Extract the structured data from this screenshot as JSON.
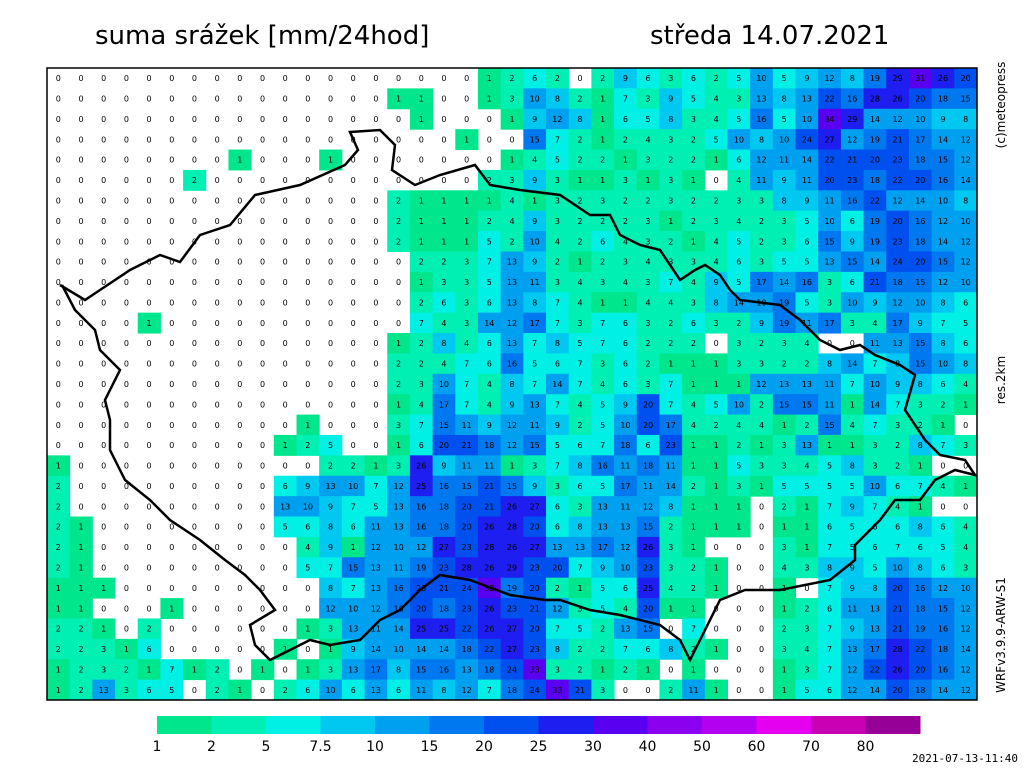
{
  "header": {
    "title": "suma srážek [mm/24hod]",
    "date": "středa 14.07.2021"
  },
  "side_labels": [
    "(c)meteopress",
    "res.2km",
    "WRFv3.9.9-ARW-S1"
  ],
  "timestamp": "2021-07-13-11:40",
  "legend": {
    "levels": [
      1,
      2,
      5,
      7.5,
      10,
      15,
      20,
      25,
      30,
      40,
      50,
      60,
      70,
      80
    ],
    "colors": [
      "#00e68c",
      "#00f0b4",
      "#00f0e6",
      "#00c8f0",
      "#00a0f0",
      "#0078f0",
      "#0050f0",
      "#1e1ef0",
      "#5a00f0",
      "#8c00f0",
      "#b400f0",
      "#e600f0",
      "#c800b4",
      "#960096"
    ]
  },
  "grid": {
    "rows": [
      [
        0,
        0,
        0,
        0,
        0,
        0,
        0,
        0,
        0,
        0,
        0,
        0,
        0,
        0,
        0,
        0,
        0,
        0,
        0,
        1,
        2,
        6,
        2,
        0,
        2,
        9,
        6,
        3,
        6,
        2,
        5,
        10,
        5,
        9,
        12,
        8,
        19,
        29,
        31,
        26,
        20
      ],
      [
        0,
        0,
        0,
        0,
        0,
        0,
        0,
        0,
        0,
        0,
        0,
        0,
        0,
        0,
        0,
        1,
        1,
        0,
        0,
        1,
        3,
        10,
        8,
        2,
        1,
        7,
        3,
        9,
        5,
        4,
        3,
        13,
        8,
        13,
        22,
        16,
        28,
        26,
        20,
        18,
        15
      ],
      [
        0,
        0,
        0,
        0,
        0,
        0,
        0,
        0,
        0,
        0,
        0,
        0,
        0,
        0,
        0,
        0,
        1,
        0,
        0,
        0,
        1,
        9,
        12,
        8,
        1,
        6,
        5,
        8,
        3,
        4,
        5,
        16,
        5,
        10,
        34,
        29,
        14,
        12,
        10,
        9,
        8
      ],
      [
        0,
        0,
        0,
        0,
        0,
        0,
        0,
        0,
        0,
        0,
        0,
        0,
        0,
        0,
        0,
        0,
        0,
        0,
        1,
        0,
        0,
        15,
        7,
        2,
        1,
        2,
        4,
        3,
        2,
        5,
        10,
        8,
        10,
        24,
        27,
        12,
        19,
        21,
        17,
        14,
        12
      ],
      [
        0,
        0,
        0,
        0,
        0,
        0,
        0,
        0,
        1,
        0,
        0,
        0,
        1,
        0,
        0,
        0,
        0,
        0,
        0,
        0,
        1,
        4,
        5,
        2,
        2,
        1,
        3,
        2,
        2,
        1,
        6,
        12,
        11,
        14,
        22,
        21,
        20,
        23,
        18,
        15,
        12
      ],
      [
        0,
        0,
        0,
        0,
        0,
        0,
        2,
        0,
        0,
        0,
        0,
        0,
        0,
        0,
        0,
        0,
        0,
        0,
        0,
        2,
        3,
        9,
        3,
        1,
        1,
        3,
        1,
        3,
        1,
        0,
        4,
        11,
        9,
        11,
        20,
        23,
        18,
        22,
        20,
        16,
        14
      ],
      [
        0,
        0,
        0,
        0,
        0,
        0,
        0,
        0,
        0,
        0,
        0,
        0,
        0,
        0,
        0,
        2,
        1,
        1,
        1,
        1,
        4,
        1,
        3,
        2,
        3,
        2,
        2,
        3,
        2,
        2,
        3,
        3,
        8,
        9,
        11,
        16,
        22,
        12,
        14,
        10,
        8
      ],
      [
        0,
        0,
        0,
        0,
        0,
        0,
        0,
        0,
        0,
        0,
        0,
        0,
        0,
        0,
        0,
        2,
        1,
        1,
        1,
        2,
        4,
        9,
        3,
        2,
        2,
        2,
        3,
        1,
        2,
        3,
        4,
        2,
        3,
        5,
        10,
        6,
        19,
        20,
        16,
        12,
        10
      ],
      [
        0,
        0,
        0,
        0,
        0,
        0,
        0,
        0,
        0,
        0,
        0,
        0,
        0,
        0,
        0,
        2,
        1,
        1,
        1,
        5,
        2,
        10,
        4,
        2,
        6,
        4,
        3,
        2,
        1,
        4,
        5,
        2,
        3,
        6,
        15,
        9,
        19,
        23,
        18,
        14,
        12
      ],
      [
        0,
        0,
        0,
        0,
        0,
        0,
        0,
        0,
        0,
        0,
        0,
        0,
        0,
        0,
        0,
        0,
        2,
        2,
        3,
        7,
        13,
        9,
        2,
        1,
        2,
        3,
        4,
        3,
        3,
        4,
        6,
        3,
        5,
        5,
        13,
        15,
        14,
        24,
        20,
        15,
        12
      ],
      [
        0,
        0,
        0,
        0,
        0,
        0,
        0,
        0,
        0,
        0,
        0,
        0,
        0,
        0,
        0,
        0,
        1,
        3,
        3,
        5,
        13,
        11,
        3,
        4,
        3,
        4,
        3,
        7,
        4,
        9,
        5,
        17,
        14,
        16,
        3,
        6,
        21,
        18,
        15,
        12,
        10
      ],
      [
        0,
        0,
        0,
        0,
        0,
        0,
        0,
        0,
        0,
        0,
        0,
        0,
        0,
        0,
        0,
        0,
        2,
        6,
        3,
        6,
        13,
        8,
        7,
        4,
        1,
        1,
        4,
        4,
        3,
        8,
        14,
        10,
        19,
        5,
        3,
        10,
        9,
        12,
        10,
        8,
        6
      ],
      [
        0,
        0,
        0,
        0,
        1,
        0,
        0,
        0,
        0,
        0,
        0,
        0,
        0,
        0,
        0,
        0,
        7,
        4,
        3,
        14,
        12,
        17,
        7,
        3,
        7,
        6,
        3,
        2,
        6,
        3,
        2,
        9,
        19,
        11,
        17,
        3,
        4,
        17,
        9,
        7,
        5
      ],
      [
        0,
        0,
        0,
        0,
        0,
        0,
        0,
        0,
        0,
        0,
        0,
        0,
        0,
        0,
        0,
        1,
        2,
        8,
        4,
        6,
        13,
        7,
        8,
        5,
        7,
        6,
        2,
        2,
        2,
        0,
        3,
        2,
        3,
        4,
        0,
        0,
        11,
        13,
        15,
        8,
        6
      ],
      [
        0,
        0,
        0,
        0,
        0,
        0,
        0,
        0,
        0,
        0,
        0,
        0,
        0,
        0,
        0,
        2,
        2,
        4,
        7,
        6,
        16,
        5,
        6,
        7,
        3,
        6,
        2,
        1,
        1,
        1,
        3,
        3,
        2,
        2,
        8,
        14,
        7,
        8,
        15,
        10,
        8
      ],
      [
        0,
        0,
        0,
        0,
        0,
        0,
        0,
        0,
        0,
        0,
        0,
        0,
        0,
        0,
        0,
        2,
        3,
        10,
        7,
        4,
        8,
        7,
        14,
        7,
        4,
        6,
        3,
        7,
        1,
        1,
        1,
        12,
        13,
        13,
        11,
        7,
        10,
        9,
        8,
        6,
        4
      ],
      [
        0,
        0,
        0,
        0,
        0,
        0,
        0,
        0,
        0,
        0,
        0,
        0,
        0,
        0,
        0,
        1,
        4,
        17,
        7,
        4,
        9,
        13,
        7,
        4,
        5,
        9,
        20,
        7,
        4,
        5,
        10,
        2,
        15,
        15,
        11,
        1,
        14,
        7,
        3,
        2,
        1
      ],
      [
        0,
        0,
        0,
        0,
        0,
        0,
        0,
        0,
        0,
        0,
        0,
        1,
        0,
        0,
        0,
        3,
        7,
        15,
        11,
        9,
        12,
        11,
        9,
        2,
        5,
        10,
        20,
        17,
        4,
        2,
        4,
        4,
        1,
        2,
        15,
        4,
        7,
        3,
        2,
        1,
        0
      ],
      [
        0,
        0,
        0,
        0,
        0,
        0,
        0,
        0,
        0,
        0,
        1,
        2,
        5,
        0,
        0,
        1,
        6,
        20,
        21,
        18,
        12,
        15,
        5,
        6,
        7,
        18,
        6,
        23,
        1,
        1,
        2,
        1,
        3,
        13,
        1,
        1,
        3,
        2,
        8,
        7,
        3
      ],
      [
        1,
        0,
        0,
        0,
        0,
        0,
        0,
        0,
        0,
        0,
        0,
        0,
        2,
        2,
        1,
        3,
        26,
        9,
        11,
        11,
        1,
        3,
        7,
        8,
        16,
        11,
        18,
        11,
        1,
        1,
        5,
        3,
        3,
        4,
        5,
        8,
        3,
        2,
        1,
        0,
        0
      ],
      [
        2,
        0,
        0,
        0,
        0,
        0,
        0,
        0,
        0,
        0,
        6,
        9,
        13,
        10,
        7,
        12,
        25,
        16,
        15,
        21,
        15,
        9,
        3,
        6,
        5,
        17,
        11,
        14,
        2,
        1,
        3,
        1,
        5,
        5,
        5,
        5,
        10,
        6,
        7,
        4,
        1
      ],
      [
        2,
        0,
        0,
        0,
        0,
        0,
        0,
        0,
        0,
        0,
        13,
        10,
        9,
        7,
        5,
        13,
        16,
        18,
        20,
        21,
        26,
        27,
        6,
        3,
        13,
        11,
        12,
        8,
        1,
        1,
        1,
        0,
        2,
        1,
        7,
        9,
        7,
        4,
        1,
        0,
        0
      ],
      [
        2,
        1,
        0,
        0,
        0,
        0,
        0,
        0,
        0,
        0,
        5,
        6,
        8,
        6,
        11,
        13,
        16,
        18,
        20,
        26,
        28,
        20,
        6,
        8,
        13,
        13,
        15,
        2,
        1,
        1,
        1,
        0,
        1,
        1,
        6,
        5,
        6,
        6,
        8,
        6,
        4
      ],
      [
        2,
        1,
        0,
        0,
        0,
        0,
        0,
        0,
        0,
        0,
        0,
        4,
        9,
        1,
        12,
        10,
        12,
        27,
        23,
        28,
        26,
        27,
        13,
        13,
        17,
        12,
        26,
        3,
        1,
        0,
        0,
        0,
        3,
        1,
        7,
        5,
        6,
        7,
        6,
        5,
        4
      ],
      [
        2,
        1,
        0,
        0,
        0,
        0,
        0,
        0,
        0,
        0,
        0,
        5,
        7,
        15,
        13,
        11,
        19,
        23,
        28,
        26,
        29,
        23,
        20,
        7,
        9,
        10,
        23,
        3,
        2,
        1,
        0,
        0,
        4,
        3,
        8,
        9,
        5,
        10,
        8,
        6,
        3
      ],
      [
        1,
        1,
        1,
        0,
        0,
        0,
        0,
        0,
        0,
        0,
        0,
        0,
        8,
        7,
        13,
        16,
        23,
        21,
        24,
        32,
        19,
        20,
        2,
        1,
        5,
        6,
        25,
        4,
        2,
        1,
        0,
        0,
        1,
        0,
        7,
        9,
        8,
        20,
        16,
        12,
        10
      ],
      [
        1,
        1,
        0,
        0,
        0,
        1,
        0,
        0,
        0,
        0,
        0,
        0,
        12,
        10,
        12,
        16,
        20,
        18,
        23,
        26,
        23,
        21,
        12,
        3,
        5,
        4,
        20,
        1,
        1,
        0,
        0,
        0,
        1,
        2,
        6,
        11,
        13,
        21,
        18,
        15,
        12
      ],
      [
        2,
        2,
        1,
        0,
        2,
        0,
        0,
        0,
        0,
        0,
        0,
        1,
        3,
        13,
        11,
        14,
        25,
        25,
        22,
        26,
        27,
        20,
        7,
        5,
        2,
        13,
        15,
        0,
        7,
        0,
        0,
        0,
        2,
        3,
        7,
        9,
        13,
        21,
        19,
        16,
        12
      ],
      [
        2,
        2,
        3,
        1,
        6,
        0,
        0,
        0,
        0,
        0,
        1,
        0,
        1,
        9,
        14,
        10,
        14,
        14,
        18,
        22,
        27,
        23,
        8,
        2,
        2,
        7,
        6,
        8,
        2,
        1,
        0,
        0,
        3,
        4,
        7,
        13,
        17,
        28,
        22,
        18,
        14
      ],
      [
        1,
        2,
        3,
        2,
        1,
        7,
        1,
        2,
        0,
        1,
        0,
        1,
        3,
        13,
        17,
        8,
        15,
        16,
        13,
        18,
        24,
        33,
        3,
        2,
        1,
        2,
        1,
        0,
        1,
        0,
        0,
        0,
        1,
        3,
        7,
        12,
        22,
        26,
        20,
        16,
        12
      ],
      [
        1,
        2,
        13,
        3,
        6,
        5,
        0,
        2,
        1,
        0,
        2,
        6,
        10,
        6,
        13,
        6,
        11,
        8,
        12,
        7,
        18,
        24,
        33,
        21,
        3,
        0,
        0,
        2,
        11,
        1,
        0,
        0,
        1,
        5,
        6,
        12,
        14,
        20,
        18,
        14,
        12
      ]
    ]
  }
}
